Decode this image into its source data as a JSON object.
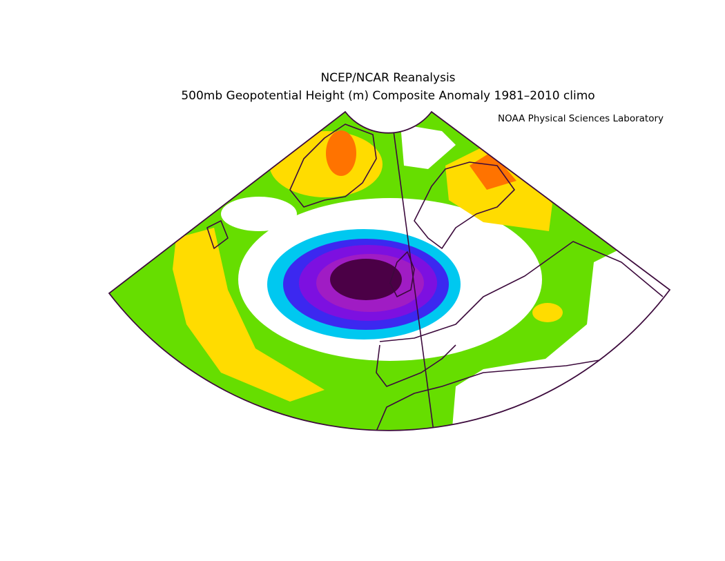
{
  "header": {
    "title": "NCEP/NCAR Reanalysis",
    "subtitle": "500mb Geopotential Height (m) Composite Anomaly 1981–2010 climo",
    "credit": "NOAA Physical Sciences Laboratory"
  }
}
